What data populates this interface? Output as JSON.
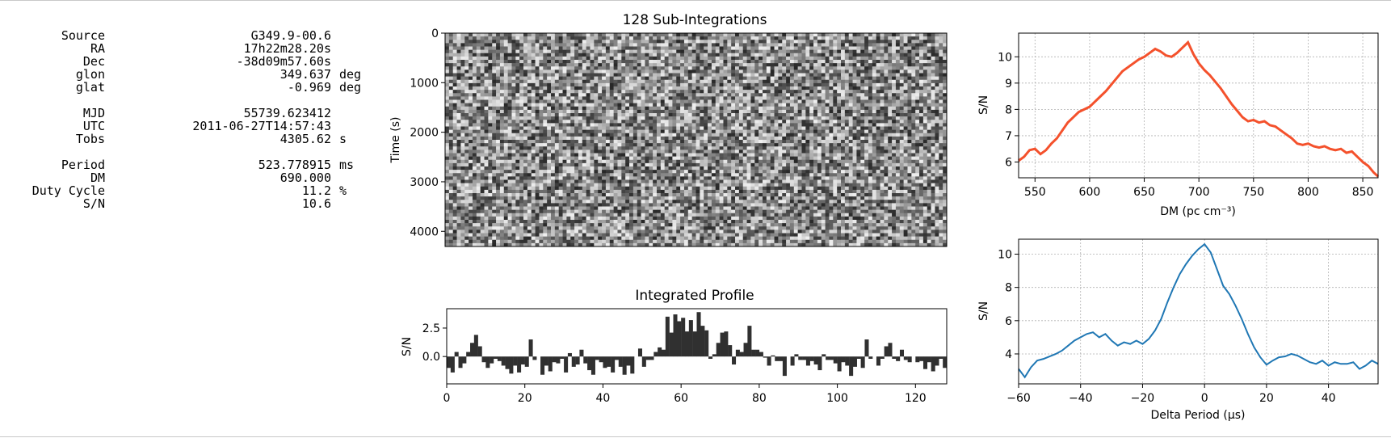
{
  "metadata": [
    {
      "label": "Source",
      "value": "G349.9-00.6",
      "unit": ""
    },
    {
      "label": "RA",
      "value": "17h22m28.20s",
      "unit": ""
    },
    {
      "label": "Dec",
      "value": "-38d09m57.60s",
      "unit": ""
    },
    {
      "label": "glon",
      "value": "349.637",
      "unit": "deg"
    },
    {
      "label": "glat",
      "value": "-0.969",
      "unit": "deg"
    },
    {
      "label": "MJD",
      "value": "55739.623412",
      "unit": ""
    },
    {
      "label": "UTC",
      "value": "2011-06-27T14:57:43",
      "unit": ""
    },
    {
      "label": "Tobs",
      "value": "4305.62",
      "unit": "s"
    },
    {
      "label": "Period",
      "value": "523.778915",
      "unit": "ms"
    },
    {
      "label": "DM",
      "value": "690.000",
      "unit": ""
    },
    {
      "label": "Duty Cycle",
      "value": "11.2",
      "unit": "%"
    },
    {
      "label": "S/N",
      "value": "10.6",
      "unit": ""
    }
  ],
  "colors": {
    "dm_curve": "#f4512c",
    "period_curve": "#1f77b4",
    "profile_bars": "#303030",
    "grid": "#b0b0b0"
  },
  "chart_data": [
    {
      "id": "subints",
      "type": "heatmap",
      "title": "128 Sub-Integrations",
      "xlabel": "",
      "ylabel": "Time (s)",
      "yticks": [
        0,
        1000,
        2000,
        3000,
        4000
      ],
      "ylim": [
        0,
        4305.62
      ],
      "xlim": [
        0,
        128
      ],
      "colormap": "grayscale",
      "grid": false
    },
    {
      "id": "profile",
      "type": "bar",
      "title": "Integrated Profile",
      "xlabel": "",
      "ylabel": "S/N",
      "xlim": [
        0,
        128
      ],
      "ylim": [
        -2.4,
        4.2
      ],
      "xticks": [
        0,
        20,
        40,
        60,
        80,
        100,
        120
      ],
      "yticks": [
        0.0,
        2.5
      ],
      "ytick_labels": [
        "0.0",
        "2.5"
      ],
      "grid": false,
      "values": [
        -1.0,
        -1.4,
        0.4,
        -1.0,
        -0.6,
        0.4,
        1.2,
        1.9,
        0.9,
        -0.5,
        -1.0,
        -0.6,
        -0.2,
        -0.4,
        -0.8,
        -1.1,
        -1.5,
        -0.8,
        -1.4,
        -0.7,
        -0.9,
        1.5,
        -0.3,
        0.0,
        -1.6,
        -0.8,
        -1.3,
        -0.5,
        -0.6,
        -0.2,
        -1.4,
        0.3,
        -0.9,
        -0.7,
        0.6,
        -0.6,
        -1.2,
        -1.6,
        -0.3,
        -0.5,
        -1.0,
        -0.9,
        -1.4,
        -0.3,
        -0.9,
        -1.6,
        -0.8,
        -1.5,
        0.0,
        0.7,
        -0.9,
        -0.3,
        -0.3,
        0.4,
        0.8,
        0.6,
        3.5,
        2.1,
        3.7,
        3.1,
        3.4,
        2.2,
        3.2,
        2.2,
        3.9,
        2.7,
        2.3,
        -0.2,
        0.2,
        1.2,
        2.1,
        2.2,
        1.0,
        -0.7,
        0.6,
        0.4,
        1.2,
        2.7,
        0.6,
        0.6,
        0.4,
        -0.1,
        -0.8,
        0.1,
        -0.4,
        -0.4,
        -1.7,
        0.0,
        -0.8,
        0.2,
        -0.3,
        -0.3,
        -0.8,
        -0.4,
        -0.7,
        -1.2,
        0.2,
        -0.3,
        -0.3,
        -0.6,
        -1.3,
        -0.5,
        -0.8,
        -1.7,
        -0.9,
        -0.2,
        -1.0,
        1.5,
        -0.2,
        0.0,
        -0.8,
        -0.2,
        0.9,
        1.2,
        -0.2,
        -0.4,
        0.6,
        -0.3,
        -0.5,
        0.0,
        -0.5,
        -0.4,
        -1.1,
        -0.5,
        -1.3,
        -0.8,
        -0.2,
        -1.0
      ]
    },
    {
      "id": "dm",
      "type": "line",
      "title": "",
      "xlabel": "DM (pc cm$^{-3}$)",
      "xlabel_display": "DM (pc cm⁻³)",
      "ylabel": "S/N",
      "xlim": [
        535,
        864
      ],
      "ylim": [
        5.4,
        10.9
      ],
      "xticks": [
        550,
        600,
        650,
        700,
        750,
        800,
        850
      ],
      "yticks": [
        6,
        7,
        8,
        9,
        10
      ],
      "grid": true,
      "x": [
        535,
        540,
        545,
        550,
        555,
        560,
        565,
        570,
        575,
        580,
        585,
        590,
        595,
        600,
        605,
        610,
        615,
        620,
        625,
        630,
        635,
        640,
        645,
        650,
        655,
        660,
        665,
        670,
        675,
        680,
        685,
        690,
        695,
        700,
        705,
        710,
        715,
        720,
        725,
        730,
        735,
        740,
        745,
        750,
        755,
        760,
        765,
        770,
        775,
        780,
        785,
        790,
        795,
        800,
        805,
        810,
        815,
        820,
        825,
        830,
        835,
        840,
        845,
        850,
        855,
        860,
        864
      ],
      "y": [
        6.05,
        6.2,
        6.45,
        6.5,
        6.3,
        6.45,
        6.7,
        6.9,
        7.2,
        7.5,
        7.7,
        7.9,
        8.0,
        8.1,
        8.3,
        8.5,
        8.7,
        8.95,
        9.2,
        9.45,
        9.6,
        9.75,
        9.9,
        10.0,
        10.15,
        10.3,
        10.2,
        10.05,
        10.0,
        10.15,
        10.35,
        10.55,
        10.1,
        9.75,
        9.5,
        9.3,
        9.05,
        8.8,
        8.5,
        8.2,
        7.95,
        7.7,
        7.55,
        7.6,
        7.5,
        7.55,
        7.4,
        7.35,
        7.2,
        7.05,
        6.9,
        6.7,
        6.65,
        6.7,
        6.6,
        6.55,
        6.6,
        6.5,
        6.45,
        6.5,
        6.35,
        6.4,
        6.2,
        6.0,
        5.85,
        5.6,
        5.45
      ]
    },
    {
      "id": "period",
      "type": "line",
      "title": "",
      "xlabel": "Delta Period ($\\mu$s)",
      "xlabel_display": "Delta Period (μs)",
      "ylabel": "S/N",
      "xlim": [
        -60,
        56
      ],
      "ylim": [
        2.2,
        10.9
      ],
      "xticks": [
        -60,
        -40,
        -20,
        0,
        20,
        40
      ],
      "xtick_labels": [
        "−60",
        "−40",
        "−20",
        "0",
        "20",
        "40"
      ],
      "yticks": [
        4,
        6,
        8,
        10
      ],
      "grid": true,
      "x": [
        -60,
        -58,
        -56,
        -54,
        -52,
        -50,
        -48,
        -46,
        -44,
        -42,
        -40,
        -38,
        -36,
        -34,
        -32,
        -30,
        -28,
        -26,
        -24,
        -22,
        -20,
        -18,
        -16,
        -14,
        -12,
        -10,
        -8,
        -6,
        -4,
        -2,
        0,
        2,
        4,
        6,
        8,
        10,
        12,
        14,
        16,
        18,
        20,
        22,
        24,
        26,
        28,
        30,
        32,
        34,
        36,
        38,
        40,
        42,
        44,
        46,
        48,
        50,
        52,
        54,
        56
      ],
      "y": [
        3.1,
        2.6,
        3.2,
        3.6,
        3.7,
        3.85,
        4.0,
        4.2,
        4.5,
        4.8,
        5.0,
        5.2,
        5.3,
        5.0,
        5.2,
        4.8,
        4.5,
        4.7,
        4.6,
        4.8,
        4.6,
        4.9,
        5.4,
        6.1,
        7.1,
        8.0,
        8.8,
        9.4,
        9.9,
        10.3,
        10.6,
        10.1,
        9.1,
        8.1,
        7.6,
        6.9,
        6.1,
        5.2,
        4.4,
        3.8,
        3.35,
        3.6,
        3.8,
        3.85,
        4.0,
        3.9,
        3.7,
        3.5,
        3.4,
        3.6,
        3.3,
        3.5,
        3.4,
        3.4,
        3.5,
        3.1,
        3.3,
        3.6,
        3.4
      ]
    }
  ]
}
